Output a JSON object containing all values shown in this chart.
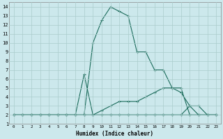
{
  "title": "",
  "xlabel": "Humidex (Indice chaleur)",
  "bg_color": "#cce8ec",
  "grid_color": "#aacccc",
  "line_color": "#1a6b5a",
  "xlim": [
    -0.5,
    23.5
  ],
  "ylim": [
    1,
    14.5
  ],
  "xticks": [
    0,
    1,
    2,
    3,
    4,
    5,
    6,
    7,
    8,
    9,
    10,
    11,
    12,
    13,
    14,
    15,
    16,
    17,
    18,
    19,
    20,
    21,
    22,
    23
  ],
  "yticks": [
    1,
    2,
    3,
    4,
    5,
    6,
    7,
    8,
    9,
    10,
    11,
    12,
    13,
    14
  ],
  "line1_x": [
    0,
    1,
    2,
    3,
    4,
    5,
    6,
    7,
    8,
    9,
    10,
    11,
    12,
    13,
    14,
    15,
    16,
    17,
    18,
    19,
    20,
    21,
    22,
    23
  ],
  "line1_y": [
    2,
    2,
    2,
    2,
    2,
    2,
    2,
    2,
    2,
    10,
    12.5,
    14,
    13.5,
    13,
    9,
    9,
    7,
    7,
    5,
    5,
    2,
    2,
    2,
    2
  ],
  "line2_x": [
    0,
    1,
    2,
    3,
    4,
    5,
    6,
    7,
    8,
    9,
    10,
    11,
    12,
    13,
    14,
    15,
    16,
    17,
    18,
    19,
    20,
    21,
    22,
    23
  ],
  "line2_y": [
    2,
    2,
    2,
    2,
    2,
    2,
    2,
    2,
    6.5,
    2,
    2,
    2,
    2,
    2,
    2,
    2,
    2,
    2,
    2,
    2,
    2,
    2,
    2,
    2
  ],
  "line3_x": [
    0,
    1,
    2,
    3,
    4,
    5,
    6,
    7,
    8,
    9,
    10,
    11,
    12,
    13,
    14,
    15,
    16,
    17,
    18,
    19,
    20,
    21,
    22,
    23
  ],
  "line3_y": [
    2,
    2,
    2,
    2,
    2,
    2,
    2,
    2,
    2,
    2,
    2,
    2,
    2,
    2,
    2,
    2,
    2,
    2,
    2,
    2,
    3,
    3,
    2,
    2
  ],
  "line4_x": [
    0,
    1,
    2,
    3,
    4,
    5,
    6,
    7,
    8,
    9,
    10,
    11,
    12,
    13,
    14,
    15,
    16,
    17,
    18,
    19,
    20,
    21,
    22,
    23
  ],
  "line4_y": [
    2,
    2,
    2,
    2,
    2,
    2,
    2,
    2,
    2,
    2,
    2.5,
    3,
    3.5,
    3.5,
    3.5,
    4,
    4.5,
    5,
    5,
    4.5,
    3,
    2,
    2,
    2
  ]
}
